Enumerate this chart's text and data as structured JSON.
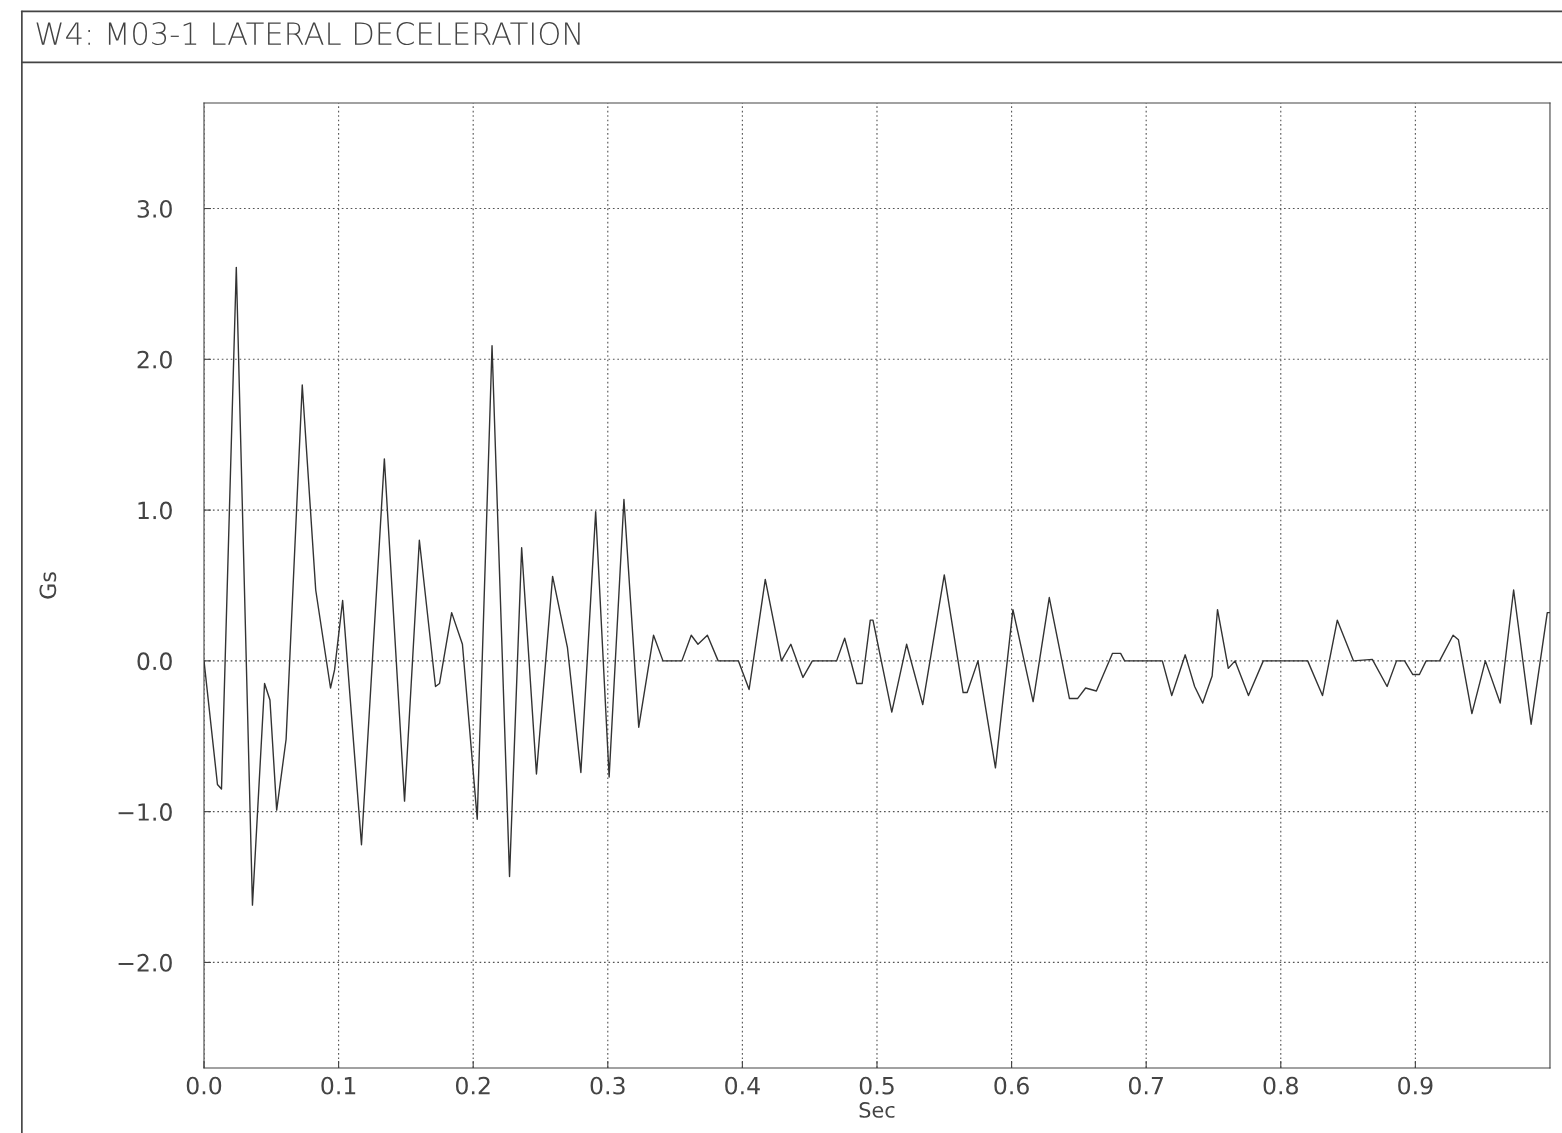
{
  "chart_data": {
    "type": "line",
    "title": "W4: M03-1 LATERAL DECELERATION",
    "xlabel": "Sec",
    "ylabel": "Gs",
    "xlim": [
      0,
      1.0
    ],
    "ylim": [
      -2.7,
      3.7
    ],
    "xticks": [
      {
        "value": 0,
        "label": "0.0"
      },
      0.1,
      0.2,
      0.3,
      0.4,
      0.5,
      0.6,
      0.7,
      0.8,
      0.9
    ],
    "yticks": [
      {
        "value": -2,
        "label": "−2.0"
      },
      {
        "value": -1,
        "label": "−1.0"
      },
      {
        "value": 0,
        "label": "0.0"
      },
      {
        "value": 1,
        "label": "1.0"
      },
      {
        "value": 2,
        "label": "2.0"
      },
      {
        "value": 3,
        "label": "3.0"
      }
    ],
    "grid": true,
    "marker": "none",
    "line_style": "solid",
    "series": [
      {
        "color": "#333333",
        "x": [
          0,
          0.01,
          0.013,
          0.024,
          0.036,
          0.045,
          0.049,
          0.054,
          0.061,
          0.073,
          0.083,
          0.094,
          0.097,
          0.103,
          0.117,
          0.134,
          0.149,
          0.16,
          0.172,
          0.175,
          0.184,
          0.192,
          0.203,
          0.214,
          0.227,
          0.236,
          0.247,
          0.259,
          0.27,
          0.28,
          0.291,
          0.301,
          0.312,
          0.323,
          0.334,
          0.341,
          0.355,
          0.362,
          0.367,
          0.374,
          0.382,
          0.397,
          0.405,
          0.417,
          0.423,
          0.429,
          0.436,
          0.445,
          0.452,
          0.47,
          0.476,
          0.485,
          0.489,
          0.495,
          0.497,
          0.511,
          0.522,
          0.534,
          0.55,
          0.564,
          0.567,
          0.575,
          0.588,
          0.601,
          0.616,
          0.628,
          0.643,
          0.649,
          0.655,
          0.663,
          0.675,
          0.681,
          0.684,
          0.712,
          0.719,
          0.729,
          0.736,
          0.742,
          0.749,
          0.753,
          0.761,
          0.766,
          0.776,
          0.787,
          0.82,
          0.831,
          0.842,
          0.854,
          0.868,
          0.879,
          0.886,
          0.892,
          0.898,
          0.903,
          0.908,
          0.918,
          0.928,
          0.932,
          0.942,
          0.952,
          0.963,
          0.973,
          0.986,
          0.998,
          1.0
        ],
        "values": [
          0,
          -0.82,
          -0.85,
          2.61,
          -1.62,
          -0.15,
          -0.26,
          -0.99,
          -0.52,
          1.83,
          0.47,
          -0.18,
          -0.06,
          0.4,
          -1.22,
          1.34,
          -0.93,
          0.8,
          -0.17,
          -0.15,
          0.32,
          0.11,
          -1.05,
          2.09,
          -1.43,
          0.75,
          -0.75,
          0.56,
          0.09,
          -0.74,
          0.99,
          -0.77,
          1.07,
          -0.44,
          0.17,
          0,
          0,
          0.17,
          0.11,
          0.17,
          0,
          0,
          -0.19,
          0.54,
          0.27,
          0,
          0.11,
          -0.11,
          0,
          0,
          0.15,
          -0.15,
          -0.15,
          0.27,
          0.27,
          -0.34,
          0.11,
          -0.29,
          0.57,
          -0.21,
          -0.21,
          0,
          -0.71,
          0.34,
          -0.27,
          0.42,
          -0.25,
          -0.25,
          -0.18,
          -0.2,
          0.05,
          0.05,
          0,
          0,
          -0.23,
          0.04,
          -0.17,
          -0.28,
          -0.1,
          0.34,
          -0.05,
          0,
          -0.23,
          0,
          0,
          -0.23,
          0.27,
          0,
          0.01,
          -0.17,
          0,
          0,
          -0.09,
          -0.09,
          0,
          0,
          0.17,
          0.14,
          -0.35,
          0,
          -0.28,
          0.47,
          -0.42,
          0.32,
          0.32
        ]
      }
    ]
  }
}
